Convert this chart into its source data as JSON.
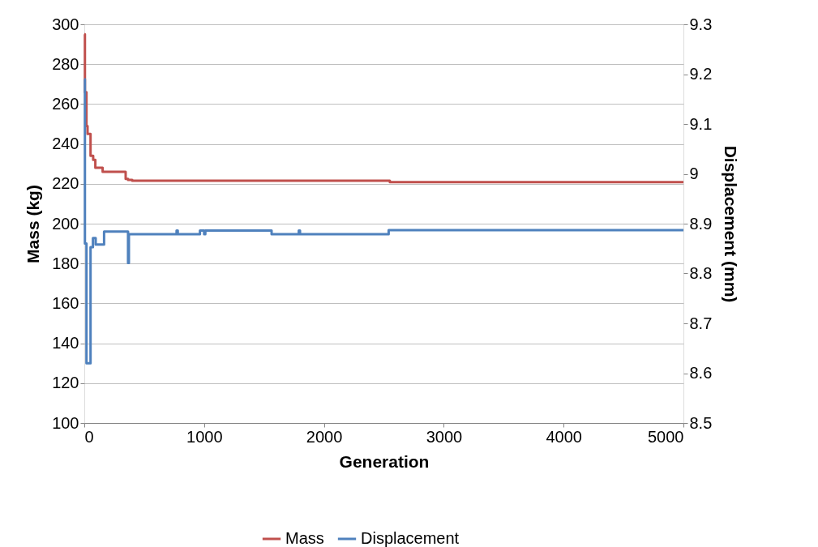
{
  "chart_data": {
    "type": "step",
    "xlabel": "Generation",
    "ylabel": "Mass (kg)",
    "y2label": "Displacement (mm)",
    "xlim": [
      0,
      5000
    ],
    "xticks": [
      0,
      1000,
      2000,
      3000,
      4000,
      5000
    ],
    "ylim": [
      100,
      300
    ],
    "yticks": [
      100,
      120,
      140,
      160,
      180,
      200,
      220,
      240,
      260,
      280,
      300
    ],
    "y2lim": [
      8.5,
      9.3
    ],
    "y2ticks": [
      8.5,
      8.6,
      8.7,
      8.8,
      8.9,
      9,
      9.1,
      9.2,
      9.3
    ],
    "grid": "y",
    "legend": "bottom",
    "marker": "none",
    "line_style": "solid",
    "series": [
      {
        "name": "Mass",
        "color": "#c0504d",
        "x": [
          0,
          5,
          18,
          27,
          52,
          74,
          92,
          153,
          345,
          365,
          400,
          2550,
          5000
        ],
        "values": [
          295,
          266,
          249,
          245,
          234,
          232,
          228,
          226,
          222.5,
          222,
          221.5,
          220.8,
          220.8
        ]
      },
      {
        "name": "Displacement",
        "color": "#4f81bd",
        "axis": "y2",
        "x": [
          0,
          5,
          18,
          52,
          72,
          95,
          165,
          365,
          372,
          770,
          780,
          965,
          1000,
          1010,
          1563,
          1790,
          1800,
          2540,
          5000
        ],
        "values": [
          9.19,
          8.86,
          8.62,
          8.853,
          8.871,
          8.858,
          8.884,
          8.821,
          8.879,
          8.886,
          8.879,
          8.886,
          8.879,
          8.886,
          8.879,
          8.886,
          8.879,
          8.887,
          8.887
        ]
      }
    ]
  }
}
